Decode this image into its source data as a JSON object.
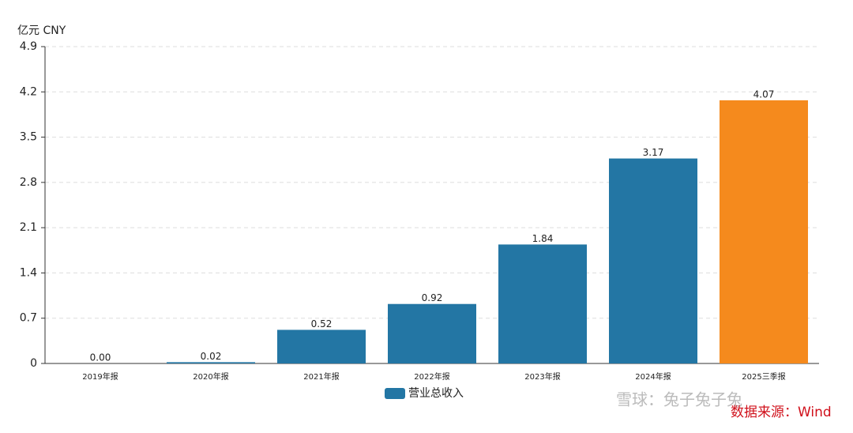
{
  "chart_data": {
    "type": "bar",
    "y_label": "亿元  CNY",
    "categories": [
      "2019年报",
      "2020年报",
      "2021年报",
      "2022年报",
      "2023年报",
      "2024年报",
      "2025三季报"
    ],
    "series": [
      {
        "name": "营业总收入",
        "color": "#2376a4",
        "colors": [
          "#2376a4",
          "#2376a4",
          "#2376a4",
          "#2376a4",
          "#2376a4",
          "#2376a4",
          "#f58a1d"
        ],
        "values": [
          0,
          0.02,
          0.52,
          0.92,
          1.84,
          3.17,
          4.07
        ],
        "value_labels": [
          "0.00",
          "0.02",
          "0.52",
          "0.92",
          "1.84",
          "3.17",
          "4.07"
        ]
      }
    ],
    "ylim": [
      0,
      4.9
    ],
    "yticks": [
      0,
      0.7,
      1.4,
      2.1,
      2.8,
      3.5,
      4.2,
      4.9
    ],
    "grid": true,
    "watermark": "雪球：兔子兔子兔",
    "source": "数据来源：Wind"
  }
}
